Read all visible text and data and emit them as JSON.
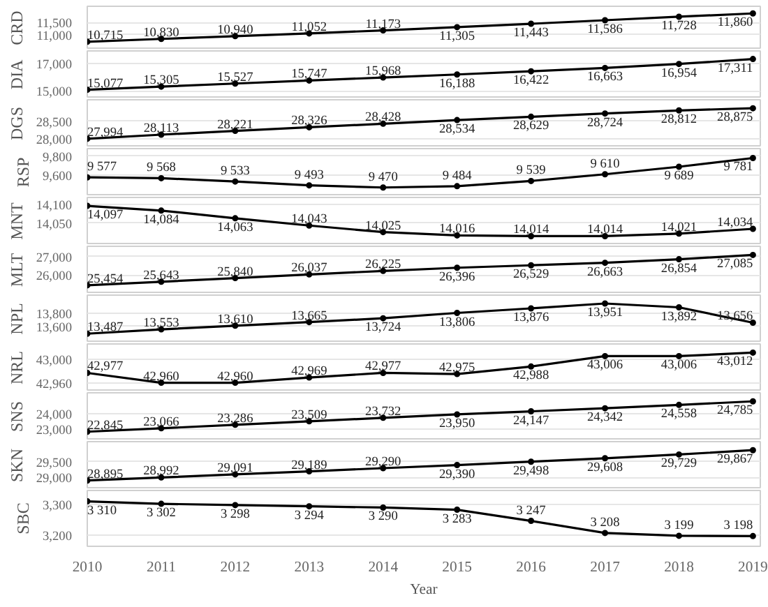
{
  "chart_data": [
    {
      "type": "line",
      "ylabel": "CRD",
      "x": [
        2010,
        2011,
        2012,
        2013,
        2014,
        2015,
        2016,
        2017,
        2018,
        2019
      ],
      "xlim": [
        2010,
        2019.1
      ],
      "ylim": [
        10400,
        12150
      ],
      "yticks": [
        {
          "value": 11000,
          "label": "11,000"
        },
        {
          "value": 11500,
          "label": "11,500"
        }
      ],
      "tick_labels": "y",
      "grid": "y",
      "marker": "circle",
      "color": "#000000",
      "values": [
        10715,
        10830,
        10940,
        11052,
        11173,
        11305,
        11443,
        11586,
        11728,
        11860
      ],
      "value_labels": [
        "10,715",
        "10,830",
        "10,940",
        "11,052",
        "11,173",
        "11,305",
        "11,443",
        "11,586",
        "11,728",
        "11,860"
      ]
    },
    {
      "type": "line",
      "ylabel": "DIA",
      "x": [
        2010,
        2011,
        2012,
        2013,
        2014,
        2015,
        2016,
        2017,
        2018,
        2019
      ],
      "xlim": [
        2010,
        2019.1
      ],
      "ylim": [
        14450,
        17900
      ],
      "yticks": [
        {
          "value": 15000,
          "label": "15,000"
        },
        {
          "value": 17000,
          "label": "17,000"
        }
      ],
      "tick_labels": "y",
      "grid": "y",
      "marker": "circle",
      "color": "#000000",
      "values": [
        15077,
        15305,
        15527,
        15747,
        15968,
        16188,
        16422,
        16663,
        16954,
        17311
      ],
      "value_labels": [
        "15,077",
        "15,305",
        "15,527",
        "15,747",
        "15,968",
        "16,188",
        "16,422",
        "16,663",
        "16,954",
        "17,311"
      ]
    },
    {
      "type": "line",
      "ylabel": "DGS",
      "x": [
        2010,
        2011,
        2012,
        2013,
        2014,
        2015,
        2016,
        2017,
        2018,
        2019
      ],
      "xlim": [
        2010,
        2019.1
      ],
      "ylim": [
        27750,
        29120
      ],
      "yticks": [
        {
          "value": 28000,
          "label": "28,000"
        },
        {
          "value": 28500,
          "label": "28,500"
        }
      ],
      "tick_labels": "y",
      "grid": "y",
      "marker": "circle",
      "color": "#000000",
      "values": [
        27994,
        28113,
        28221,
        28326,
        28428,
        28534,
        28629,
        28724,
        28812,
        28875
      ],
      "value_labels": [
        "27,994",
        "28,113",
        "28,221",
        "28,326",
        "28,428",
        "28,534",
        "28,629",
        "28,724",
        "28,812",
        "28,875"
      ]
    },
    {
      "type": "line",
      "ylabel": "RSP",
      "x": [
        2010,
        2011,
        2012,
        2013,
        2014,
        2015,
        2016,
        2017,
        2018,
        2019
      ],
      "xlim": [
        2010,
        2019.1
      ],
      "ylim": [
        9380,
        9880
      ],
      "yticks": [
        {
          "value": 9600,
          "label": "9,600"
        },
        {
          "value": 9800,
          "label": "9,800"
        }
      ],
      "tick_labels": "y",
      "grid": "y",
      "marker": "circle",
      "color": "#000000",
      "values": [
        9577,
        9568,
        9533,
        9493,
        9470,
        9484,
        9539,
        9610,
        9689,
        9781
      ],
      "value_labels": [
        "9 577",
        "9 568",
        "9 533",
        "9 493",
        "9 470",
        "9 484",
        "9 539",
        "9 610",
        "9 689",
        "9 781"
      ]
    },
    {
      "type": "line",
      "ylabel": "MNT",
      "x": [
        2010,
        2011,
        2012,
        2013,
        2014,
        2015,
        2016,
        2017,
        2018,
        2019
      ],
      "xlim": [
        2010,
        2019.1
      ],
      "ylim": [
        13990,
        14120
      ],
      "yticks": [
        {
          "value": 14050,
          "label": "14,050"
        },
        {
          "value": 14100,
          "label": "14,100"
        }
      ],
      "tick_labels": "y",
      "grid": "y",
      "marker": "circle",
      "color": "#000000",
      "values": [
        14097,
        14084,
        14063,
        14043,
        14025,
        14016,
        14014,
        14014,
        14021,
        14034
      ],
      "value_labels": [
        "14,097",
        "14,084",
        "14,063",
        "14,043",
        "14,025",
        "14,016",
        "14,014",
        "14,014",
        "14,021",
        "14,034"
      ]
    },
    {
      "type": "line",
      "ylabel": "MLT",
      "x": [
        2010,
        2011,
        2012,
        2013,
        2014,
        2015,
        2016,
        2017,
        2018,
        2019
      ],
      "xlim": [
        2010,
        2019.1
      ],
      "ylim": [
        25000,
        27550
      ],
      "yticks": [
        {
          "value": 26000,
          "label": "26,000"
        },
        {
          "value": 27000,
          "label": "27,000"
        }
      ],
      "tick_labels": "y",
      "grid": "y",
      "marker": "circle",
      "color": "#000000",
      "values": [
        25454,
        25643,
        25840,
        26037,
        26225,
        26396,
        26529,
        26663,
        26854,
        27085
      ],
      "value_labels": [
        "25,454",
        "25,643",
        "25,840",
        "26,037",
        "26,225",
        "26,396",
        "26,529",
        "26,663",
        "26,854",
        "27,085"
      ]
    },
    {
      "type": "line",
      "ylabel": "NPL",
      "x": [
        2010,
        2011,
        2012,
        2013,
        2014,
        2015,
        2016,
        2017,
        2018,
        2019
      ],
      "xlim": [
        2010,
        2019.1
      ],
      "ylim": [
        13350,
        14080
      ],
      "yticks": [
        {
          "value": 13600,
          "label": "13,600"
        },
        {
          "value": 13800,
          "label": "13,800"
        }
      ],
      "tick_labels": "y",
      "grid": "y",
      "marker": "circle",
      "color": "#000000",
      "values": [
        13487,
        13553,
        13610,
        13665,
        13724,
        13806,
        13876,
        13951,
        13892,
        13656
      ],
      "value_labels": [
        "13,487",
        "13,553",
        "13,610",
        "13,665",
        "13,724",
        "13,806",
        "13,876",
        "13,951",
        "13,892",
        "13,656"
      ]
    },
    {
      "type": "line",
      "ylabel": "NRL",
      "x": [
        2010,
        2011,
        2012,
        2013,
        2014,
        2015,
        2016,
        2017,
        2018,
        2019
      ],
      "xlim": [
        2010,
        2019.1
      ],
      "ylim": [
        42945,
        43027
      ],
      "yticks": [
        {
          "value": 42960,
          "label": "42,960"
        },
        {
          "value": 43000,
          "label": "43,000"
        }
      ],
      "tick_labels": "y",
      "grid": "y",
      "marker": "circle",
      "color": "#000000",
      "values": [
        42977,
        42960,
        42960,
        42969,
        42977,
        42975,
        42988,
        43006,
        43006,
        43012
      ],
      "value_labels": [
        "42,977",
        "42,960",
        "42,960",
        "42,969",
        "42,977",
        "42,975",
        "42,988",
        "43,006",
        "43,006",
        "43,012"
      ]
    },
    {
      "type": "line",
      "ylabel": "SNS",
      "x": [
        2010,
        2011,
        2012,
        2013,
        2014,
        2015,
        2016,
        2017,
        2018,
        2019
      ],
      "xlim": [
        2010,
        2019.1
      ],
      "ylim": [
        22300,
        25330
      ],
      "yticks": [
        {
          "value": 23000,
          "label": "23,000"
        },
        {
          "value": 24000,
          "label": "24,000"
        }
      ],
      "tick_labels": "y",
      "grid": "y",
      "marker": "circle",
      "color": "#000000",
      "values": [
        22845,
        23066,
        23286,
        23509,
        23732,
        23950,
        24147,
        24342,
        24558,
        24785
      ],
      "value_labels": [
        "22,845",
        "23,066",
        "23,286",
        "23,509",
        "23,732",
        "23,950",
        "24,147",
        "24,342",
        "24,558",
        "24,785"
      ]
    },
    {
      "type": "line",
      "ylabel": "SKN",
      "x": [
        2010,
        2011,
        2012,
        2013,
        2014,
        2015,
        2016,
        2017,
        2018,
        2019
      ],
      "xlim": [
        2010,
        2019.1
      ],
      "ylim": [
        28620,
        30140
      ],
      "yticks": [
        {
          "value": 29000,
          "label": "29,000"
        },
        {
          "value": 29500,
          "label": "29,500"
        }
      ],
      "tick_labels": "y",
      "grid": "y",
      "marker": "circle",
      "color": "#000000",
      "values": [
        28895,
        28992,
        29091,
        29189,
        29290,
        29390,
        29498,
        29608,
        29729,
        29867
      ],
      "value_labels": [
        "28,895",
        "28,992",
        "29,091",
        "29,189",
        "29,290",
        "29,390",
        "29,498",
        "29,608",
        "29,729",
        "29,867"
      ]
    },
    {
      "type": "line",
      "ylabel": "SBC",
      "xlabel": "Year",
      "x": [
        2010,
        2011,
        2012,
        2013,
        2014,
        2015,
        2016,
        2017,
        2018,
        2019
      ],
      "xlim": [
        2010,
        2019.1
      ],
      "xticks": [
        2010,
        2011,
        2012,
        2013,
        2014,
        2015,
        2016,
        2017,
        2018,
        2019
      ],
      "ylim": [
        3165,
        3345
      ],
      "yticks": [
        {
          "value": 3200,
          "label": "3,200"
        },
        {
          "value": 3300,
          "label": "3,300"
        }
      ],
      "grid": "y",
      "marker": "circle",
      "color": "#000000",
      "values": [
        3310,
        3302,
        3298,
        3294,
        3290,
        3283,
        3247,
        3208,
        3199,
        3198
      ],
      "value_labels": [
        "3 310",
        "3 302",
        "3 298",
        "3 294",
        "3 290",
        "3 283",
        "3 247",
        "3 208",
        "3 199",
        "3 198"
      ]
    }
  ]
}
